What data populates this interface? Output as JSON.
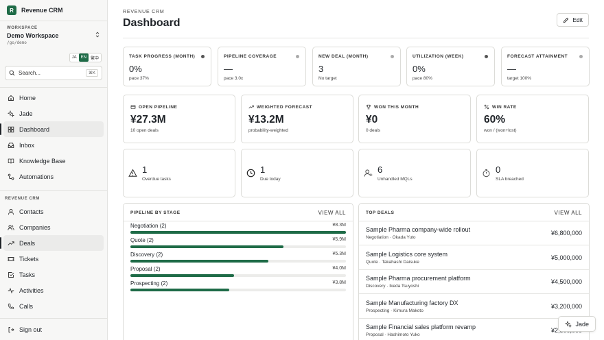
{
  "brand": {
    "logo_letter": "R",
    "name": "Revenue CRM"
  },
  "workspace": {
    "label": "WORKSPACE",
    "name": "Demo Workspace",
    "slug": "/go/demo"
  },
  "languages": [
    {
      "label": "JA"
    },
    {
      "label": "EN",
      "active": true
    },
    {
      "label": "繁中"
    }
  ],
  "search": {
    "placeholder": "Search...",
    "shortcut": "⌘K"
  },
  "nav_primary": [
    {
      "label": "Home",
      "icon": "home-icon"
    },
    {
      "label": "Jade",
      "icon": "sparkle-icon"
    },
    {
      "label": "Dashboard",
      "icon": "grid-icon",
      "active": true
    },
    {
      "label": "Inbox",
      "icon": "inbox-icon"
    },
    {
      "label": "Knowledge Base",
      "icon": "book-icon"
    },
    {
      "label": "Automations",
      "icon": "flow-icon"
    }
  ],
  "nav_section_label": "REVENUE CRM",
  "nav_crm": [
    {
      "label": "Contacts",
      "icon": "user-icon"
    },
    {
      "label": "Companies",
      "icon": "users-icon"
    },
    {
      "label": "Deals",
      "icon": "trend-icon",
      "active": true
    },
    {
      "label": "Tickets",
      "icon": "ticket-icon"
    },
    {
      "label": "Tasks",
      "icon": "check-square-icon"
    },
    {
      "label": "Activities",
      "icon": "activity-icon"
    },
    {
      "label": "Calls",
      "icon": "phone-icon"
    }
  ],
  "signout": {
    "label": "Sign out"
  },
  "header": {
    "overline": "REVENUE CRM",
    "title": "Dashboard",
    "edit_label": "Edit"
  },
  "kpis": [
    {
      "label": "TASK PROGRESS (MONTH)",
      "value": "0%",
      "sub": "pace 37%",
      "dot_color": "#555555"
    },
    {
      "label": "PIPELINE COVERAGE",
      "value": "—",
      "sub": "pace 3.0x",
      "dot_color": "#aaaaaa"
    },
    {
      "label": "NEW DEAL (MONTH)",
      "value": "3",
      "sub": "No target",
      "dot_color": "#aaaaaa"
    },
    {
      "label": "UTILIZATION (WEEK)",
      "value": "0%",
      "sub": "pace 80%",
      "dot_color": "#555555"
    },
    {
      "label": "FORECAST ATTAINMENT",
      "value": "—",
      "sub": "target 100%",
      "dot_color": "#aaaaaa"
    }
  ],
  "metrics": [
    {
      "label": "OPEN PIPELINE",
      "icon": "wallet-icon",
      "value": "¥27.3M",
      "sub": "10 open deals"
    },
    {
      "label": "WEIGHTED FORECAST",
      "icon": "trend-up-icon",
      "value": "¥13.2M",
      "sub": "probability-weighted"
    },
    {
      "label": "WON THIS MONTH",
      "icon": "trophy-icon",
      "value": "¥0",
      "sub": "0 deals"
    },
    {
      "label": "WIN RATE",
      "icon": "percent-icon",
      "value": "60%",
      "sub": "won / (won+lost)"
    }
  ],
  "alerts": [
    {
      "icon": "warning-icon",
      "value": "1",
      "sub": "Overdue tasks"
    },
    {
      "icon": "clock-icon",
      "value": "1",
      "sub": "Due today"
    },
    {
      "icon": "user-plus-icon",
      "value": "6",
      "sub": "Unhandled MQLs"
    },
    {
      "icon": "timer-icon",
      "value": "0",
      "sub": "SLA breached"
    }
  ],
  "pipeline": {
    "title": "PIPELINE BY STAGE",
    "link": "VIEW ALL",
    "stages": [
      {
        "name": "Negotiation",
        "count": "(2)",
        "amount": "¥8.3M",
        "fill": 1.0
      },
      {
        "name": "Quote",
        "count": "(2)",
        "amount": "¥5.9M",
        "fill": 0.71
      },
      {
        "name": "Discovery",
        "count": "(2)",
        "amount": "¥5.3M",
        "fill": 0.64
      },
      {
        "name": "Proposal",
        "count": "(2)",
        "amount": "¥4.0M",
        "fill": 0.48
      },
      {
        "name": "Prospecting",
        "count": "(2)",
        "amount": "¥3.8M",
        "fill": 0.46
      }
    ]
  },
  "top_deals": {
    "title": "TOP DEALS",
    "link": "VIEW ALL",
    "deals": [
      {
        "name": "Sample Pharma company-wide rollout",
        "meta": "Negotiation · Okada Yuto",
        "amount": "¥6,800,000"
      },
      {
        "name": "Sample Logistics core system",
        "meta": "Quote · Takahashi Daisuke",
        "amount": "¥5,000,000"
      },
      {
        "name": "Sample Pharma procurement platform",
        "meta": "Discovery · Ikeda Tsuyoshi",
        "amount": "¥4,500,000"
      },
      {
        "name": "Sample Manufacturing factory DX",
        "meta": "Prospecting · Kimura Makoto",
        "amount": "¥3,200,000"
      },
      {
        "name": "Sample Financial sales platform revamp",
        "meta": "Proposal · Hashimoto Yuko",
        "amount": "¥2,800,000"
      }
    ]
  },
  "assistant": {
    "label": "Jade"
  },
  "colors": {
    "accent": "#1e6b47",
    "bar_track": "#ececea",
    "border": "#dcdcd8",
    "sidebar_bg": "#f7f7f6"
  }
}
